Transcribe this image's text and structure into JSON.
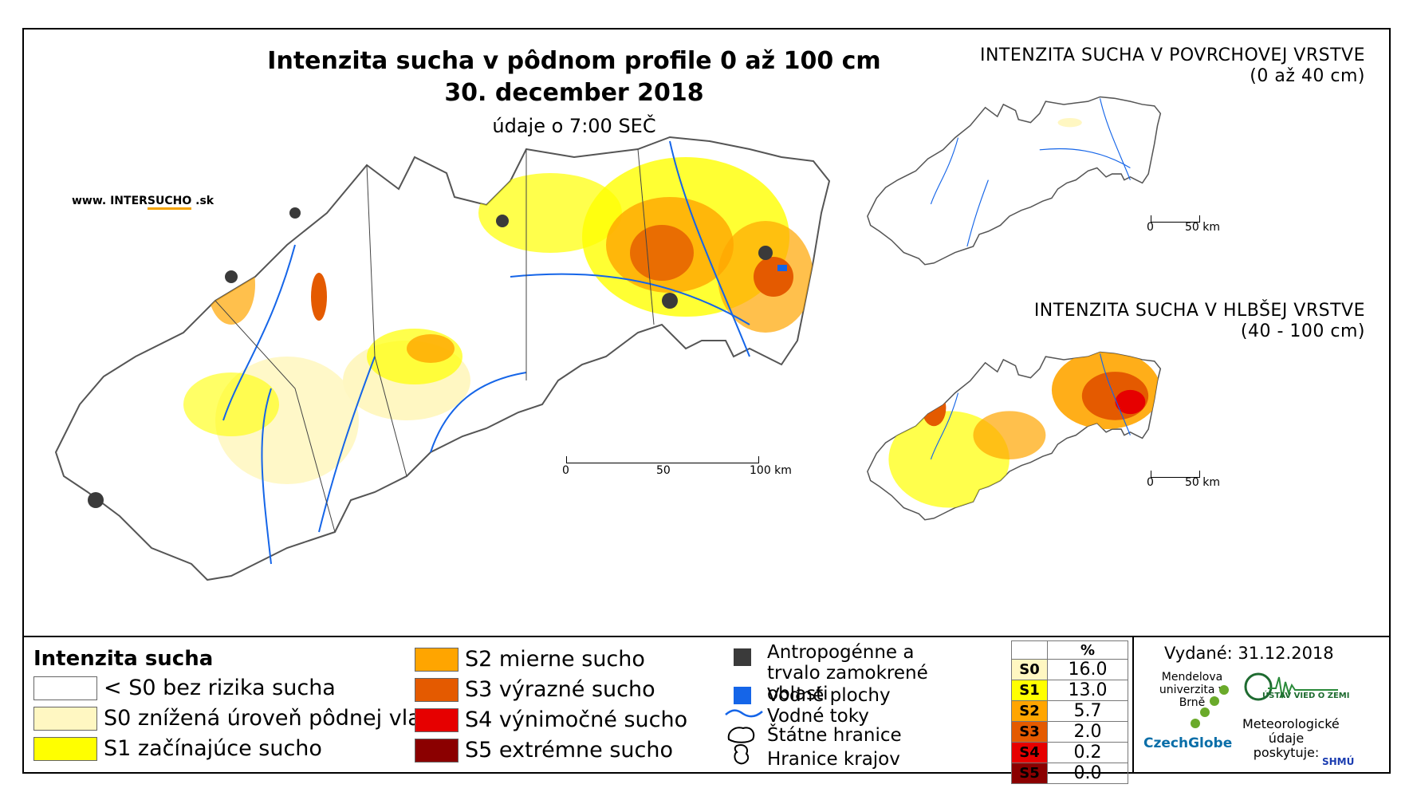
{
  "main_title": "Intenzita sucha v pôdnom profile 0 až 100 cm",
  "date_title": "30. december 2018",
  "data_time": "údaje o 7:00 SEČ",
  "website": {
    "prefix": "www. INTER",
    "highlight": "SUCHO",
    "suffix": " .sk"
  },
  "main_scale": {
    "ticks": [
      "0",
      "50",
      "100 km"
    ]
  },
  "surface_map": {
    "title": "INTENZITA SUCHA V POVRCHOVEJ VRSTVE",
    "subtitle": "(0 až 40 cm)",
    "scale": [
      "0",
      "50 km"
    ]
  },
  "deep_map": {
    "title": "INTENZITA SUCHA V HLBŠEJ VRSTVE",
    "subtitle": "(40 - 100 cm)",
    "scale": [
      "0",
      "50 km"
    ]
  },
  "legend": {
    "title": "Intenzita sucha",
    "classes": [
      {
        "label": "< S0 bez rizika sucha",
        "color": "#ffffff"
      },
      {
        "label": "S0 znížená úroveň pôdnej vlahy",
        "color": "#fff7c2"
      },
      {
        "label": "S1 začínajúce sucho",
        "color": "#ffff00"
      },
      {
        "label": "S2 mierne sucho",
        "color": "#ffa500"
      },
      {
        "label": "S3 výrazné sucho",
        "color": "#e45a00"
      },
      {
        "label": "S4 výnimočné sucho",
        "color": "#e60000"
      },
      {
        "label": "S5 extrémne sucho",
        "color": "#8b0000"
      }
    ]
  },
  "symbols": {
    "urban": "Antropogénne a trvalo zamokrené oblasti",
    "water_bodies": "Vodné plochy",
    "rivers": "Vodné toky",
    "state_border": "Štátne hranice",
    "region_border": "Hranice krajov",
    "urban_color": "#3a3a3a",
    "water_color": "#1565e8"
  },
  "percent_table": {
    "header": "%",
    "rows": [
      {
        "cls": "S0",
        "value": "16.0",
        "color": "#fff7c2"
      },
      {
        "cls": "S1",
        "value": "13.0",
        "color": "#ffff00"
      },
      {
        "cls": "S2",
        "value": "5.7",
        "color": "#ffa500"
      },
      {
        "cls": "S3",
        "value": "2.0",
        "color": "#e45a00"
      },
      {
        "cls": "S4",
        "value": "0.2",
        "color": "#e60000"
      },
      {
        "cls": "S5",
        "value": "0.0",
        "color": "#8b0000"
      }
    ]
  },
  "issued": "Vydané: 31.12.2018",
  "logos": {
    "mendel": "Mendelova univerzita v Brně",
    "czechglobe": "CzechGlobe",
    "ustav": "ÚSTAV VIED O ZEMI",
    "meteo": "Meteorologické údaje poskytuje:",
    "shmu": "SHMÚ"
  }
}
